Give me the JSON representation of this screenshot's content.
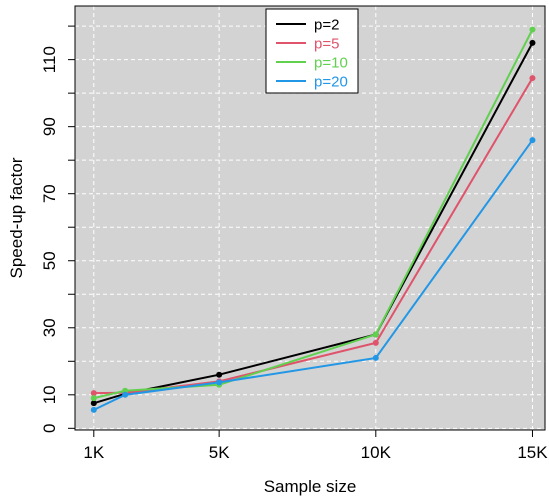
{
  "chart_data": {
    "type": "line",
    "xlabel": "Sample size",
    "ylabel": "Speed-up factor",
    "xlim": [
      400,
      15400
    ],
    "ylim": [
      -0.5,
      126
    ],
    "x_ticks": [
      {
        "value": 1000,
        "label": "1K"
      },
      {
        "value": 5000,
        "label": "5K"
      },
      {
        "value": 10000,
        "label": "10K"
      },
      {
        "value": 15000,
        "label": "15K"
      }
    ],
    "y_ticks": [
      {
        "value": 0,
        "label": "0"
      },
      {
        "value": 10,
        "label": "10"
      },
      {
        "value": 30,
        "label": "30"
      },
      {
        "value": 50,
        "label": "50"
      },
      {
        "value": 70,
        "label": "70"
      },
      {
        "value": 90,
        "label": "90"
      },
      {
        "value": 110,
        "label": "110"
      }
    ],
    "y_minor_ticks": [
      20,
      40,
      60,
      80,
      100,
      120
    ],
    "grid": true,
    "legend_position": "top-center",
    "background": "#d3d3d3",
    "x": [
      1000,
      2000,
      5000,
      10000,
      15000
    ],
    "series": [
      {
        "name": "p=2",
        "color": "#000000",
        "values": [
          7.5,
          10.3,
          16.0,
          28.0,
          115.0
        ]
      },
      {
        "name": "p=5",
        "color": "#df536b",
        "values": [
          10.5,
          10.6,
          14.0,
          25.5,
          104.5
        ]
      },
      {
        "name": "p=10",
        "color": "#61d04f",
        "values": [
          9.0,
          11.2,
          13.0,
          28.0,
          119.0
        ]
      },
      {
        "name": "p=20",
        "color": "#2297e6",
        "values": [
          5.5,
          10.0,
          13.7,
          21.0,
          86.0
        ]
      }
    ]
  }
}
